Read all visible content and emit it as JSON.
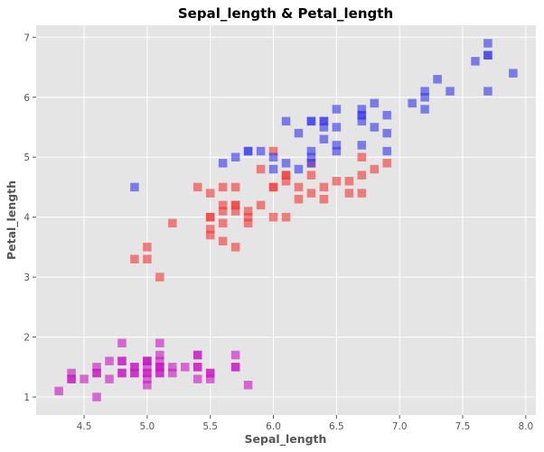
{
  "chart_data": {
    "type": "scatter",
    "title": "Sepal_length & Petal_length",
    "xlabel": "Sepal_length",
    "ylabel": "Petal_length",
    "xlim": [
      4.12,
      8.08
    ],
    "ylim": [
      0.7,
      7.2
    ],
    "xticks": [
      "4.5",
      "5.0",
      "5.5",
      "6.0",
      "6.5",
      "7.0",
      "7.5",
      "8.0"
    ],
    "yticks": [
      "1",
      "2",
      "3",
      "4",
      "5",
      "6",
      "7"
    ],
    "grid": true,
    "background_color": "#e5e5e5",
    "series": [
      {
        "color": "#c71bc2",
        "points": [
          [
            4.3,
            1.1
          ],
          [
            4.4,
            1.3
          ],
          [
            4.4,
            1.4
          ],
          [
            4.4,
            1.3
          ],
          [
            4.5,
            1.3
          ],
          [
            4.6,
            1.4
          ],
          [
            4.6,
            1.0
          ],
          [
            4.6,
            1.5
          ],
          [
            4.6,
            1.4
          ],
          [
            4.7,
            1.3
          ],
          [
            4.7,
            1.6
          ],
          [
            4.8,
            1.6
          ],
          [
            4.8,
            1.4
          ],
          [
            4.8,
            1.9
          ],
          [
            4.8,
            1.4
          ],
          [
            4.8,
            1.6
          ],
          [
            4.9,
            1.4
          ],
          [
            4.9,
            1.5
          ],
          [
            4.9,
            1.5
          ],
          [
            4.9,
            1.4
          ],
          [
            5.0,
            1.4
          ],
          [
            5.0,
            1.2
          ],
          [
            5.0,
            1.6
          ],
          [
            5.0,
            1.5
          ],
          [
            5.0,
            1.4
          ],
          [
            5.0,
            1.3
          ],
          [
            5.0,
            1.6
          ],
          [
            5.0,
            1.6
          ],
          [
            5.1,
            1.4
          ],
          [
            5.1,
            1.5
          ],
          [
            5.1,
            1.5
          ],
          [
            5.1,
            1.7
          ],
          [
            5.1,
            1.6
          ],
          [
            5.1,
            1.9
          ],
          [
            5.1,
            1.5
          ],
          [
            5.1,
            1.4
          ],
          [
            5.2,
            1.5
          ],
          [
            5.2,
            1.4
          ],
          [
            5.3,
            1.5
          ],
          [
            5.4,
            1.7
          ],
          [
            5.4,
            1.5
          ],
          [
            5.4,
            1.3
          ],
          [
            5.4,
            1.5
          ],
          [
            5.4,
            1.7
          ],
          [
            5.5,
            1.4
          ],
          [
            5.5,
            1.3
          ],
          [
            5.5,
            1.4
          ],
          [
            5.7,
            1.5
          ],
          [
            5.7,
            1.7
          ],
          [
            5.7,
            1.5
          ],
          [
            5.8,
            1.2
          ]
        ]
      },
      {
        "color": "#ee3b3b",
        "points": [
          [
            4.9,
            3.3
          ],
          [
            5.0,
            3.5
          ],
          [
            5.0,
            3.3
          ],
          [
            5.1,
            3.0
          ],
          [
            5.2,
            3.9
          ],
          [
            5.4,
            4.5
          ],
          [
            5.5,
            4.0
          ],
          [
            5.5,
            4.4
          ],
          [
            5.5,
            3.8
          ],
          [
            5.5,
            3.7
          ],
          [
            5.5,
            4.0
          ],
          [
            5.6,
            4.5
          ],
          [
            5.6,
            3.9
          ],
          [
            5.6,
            4.2
          ],
          [
            5.6,
            3.6
          ],
          [
            5.6,
            4.1
          ],
          [
            5.7,
            4.5
          ],
          [
            5.7,
            3.5
          ],
          [
            5.7,
            4.2
          ],
          [
            5.7,
            4.2
          ],
          [
            5.7,
            4.1
          ],
          [
            5.8,
            4.1
          ],
          [
            5.8,
            4.0
          ],
          [
            5.8,
            3.9
          ],
          [
            5.9,
            4.8
          ],
          [
            5.9,
            4.2
          ],
          [
            6.0,
            4.0
          ],
          [
            6.0,
            4.5
          ],
          [
            6.0,
            5.1
          ],
          [
            6.0,
            4.5
          ],
          [
            6.1,
            4.7
          ],
          [
            6.1,
            4.0
          ],
          [
            6.1,
            4.7
          ],
          [
            6.1,
            4.6
          ],
          [
            6.2,
            4.5
          ],
          [
            6.2,
            4.3
          ],
          [
            6.3,
            4.7
          ],
          [
            6.3,
            4.4
          ],
          [
            6.3,
            4.9
          ],
          [
            6.4,
            4.5
          ],
          [
            6.4,
            4.3
          ],
          [
            6.5,
            4.6
          ],
          [
            6.6,
            4.6
          ],
          [
            6.6,
            4.4
          ],
          [
            6.7,
            4.4
          ],
          [
            6.7,
            5.0
          ],
          [
            6.7,
            4.7
          ],
          [
            6.8,
            4.8
          ],
          [
            6.9,
            4.9
          ]
        ]
      },
      {
        "color": "#3a3ae8",
        "points": [
          [
            4.9,
            4.5
          ],
          [
            5.6,
            4.9
          ],
          [
            5.7,
            5.0
          ],
          [
            5.8,
            5.1
          ],
          [
            5.8,
            5.1
          ],
          [
            5.9,
            5.1
          ],
          [
            6.0,
            5.0
          ],
          [
            6.0,
            4.8
          ],
          [
            6.1,
            5.6
          ],
          [
            6.1,
            4.9
          ],
          [
            6.2,
            5.4
          ],
          [
            6.2,
            4.8
          ],
          [
            6.3,
            5.6
          ],
          [
            6.3,
            5.1
          ],
          [
            6.3,
            4.9
          ],
          [
            6.3,
            5.0
          ],
          [
            6.3,
            5.6
          ],
          [
            6.4,
            5.5
          ],
          [
            6.4,
            5.3
          ],
          [
            6.4,
            5.6
          ],
          [
            6.4,
            5.6
          ],
          [
            6.5,
            5.8
          ],
          [
            6.5,
            5.5
          ],
          [
            6.5,
            5.1
          ],
          [
            6.5,
            5.2
          ],
          [
            6.7,
            5.7
          ],
          [
            6.7,
            5.8
          ],
          [
            6.7,
            5.6
          ],
          [
            6.7,
            5.2
          ],
          [
            6.7,
            5.7
          ],
          [
            6.8,
            5.5
          ],
          [
            6.8,
            5.9
          ],
          [
            6.9,
            5.7
          ],
          [
            6.9,
            5.4
          ],
          [
            6.9,
            5.1
          ],
          [
            7.1,
            5.9
          ],
          [
            7.2,
            6.0
          ],
          [
            7.2,
            6.1
          ],
          [
            7.2,
            5.8
          ],
          [
            7.3,
            6.3
          ],
          [
            7.4,
            6.1
          ],
          [
            7.6,
            6.6
          ],
          [
            7.7,
            6.7
          ],
          [
            7.7,
            6.9
          ],
          [
            7.7,
            6.7
          ],
          [
            7.7,
            6.1
          ],
          [
            7.9,
            6.4
          ]
        ]
      }
    ]
  }
}
